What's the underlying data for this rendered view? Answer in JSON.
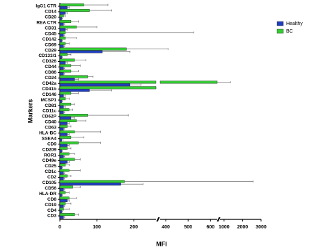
{
  "chart_data": {
    "type": "bar",
    "orientation": "horizontal",
    "y_label": "Markers",
    "x_label": "MFI",
    "categories": [
      "IgG1 CTR",
      "CD14",
      "CD20",
      "REA CTR",
      "CD31",
      "CD45",
      "CD142",
      "CD69",
      "CD29",
      "CD133/1",
      "CD326",
      "CD44",
      "CD86",
      "CD24",
      "CD42a",
      "CD41b",
      "CD146",
      "MCSP1",
      "CD81",
      "CD11c",
      "CD62P",
      "CD40",
      "CD63",
      "HLA-BC",
      "SSEA4",
      "CD9",
      "CD209",
      "ROR1",
      "CD49e",
      "CD25",
      "CD1c",
      "CD2",
      "CD105",
      "CD56",
      "HLA-DR",
      "CD8",
      "CD19",
      "CD4",
      "CD3"
    ],
    "series": [
      {
        "name": "Healthy",
        "color": "#1f3fbf",
        "values": [
          20,
          15,
          5,
          10,
          15,
          10,
          5,
          10,
          115,
          5,
          15,
          10,
          10,
          40,
          190,
          80,
          10,
          5,
          10,
          10,
          30,
          20,
          10,
          20,
          5,
          20,
          5,
          10,
          20,
          5,
          10,
          10,
          165,
          10,
          5,
          20,
          10,
          5,
          10
        ],
        "errors": [
          5,
          5,
          2,
          3,
          5,
          3,
          2,
          3,
          75,
          2,
          5,
          3,
          3,
          10,
          30,
          60,
          5,
          2,
          5,
          3,
          10,
          5,
          3,
          5,
          3,
          5,
          2,
          3,
          5,
          2,
          3,
          3,
          60,
          3,
          2,
          5,
          3,
          2,
          3
        ]
      },
      {
        "name": "BC",
        "color": "#33cc33",
        "values": [
          65,
          80,
          10,
          30,
          45,
          15,
          15,
          15,
          180,
          20,
          40,
          30,
          30,
          75,
          650,
          260,
          30,
          15,
          30,
          25,
          75,
          45,
          20,
          40,
          30,
          50,
          20,
          25,
          40,
          15,
          25,
          20,
          175,
          35,
          15,
          25,
          15,
          10,
          40
        ],
        "errors": [
          65,
          60,
          5,
          20,
          55,
          510,
          30,
          10,
          230,
          10,
          30,
          25,
          20,
          15,
          700,
          60,
          20,
          10,
          10,
          10,
          110,
          25,
          10,
          70,
          35,
          60,
          10,
          15,
          15,
          10,
          30,
          10,
          2400,
          20,
          10,
          20,
          15,
          15,
          10
        ]
      }
    ],
    "x_segments": [
      {
        "xlim": [
          0,
          260
        ],
        "xticks": [
          0,
          100,
          200
        ]
      },
      {
        "xlim": [
          375,
          630
        ],
        "xticks": [
          400,
          500,
          600
        ]
      },
      {
        "xlim": [
          780,
          3000
        ],
        "xticks": [
          1000,
          2000,
          3000
        ]
      }
    ],
    "legend": "top-right"
  }
}
